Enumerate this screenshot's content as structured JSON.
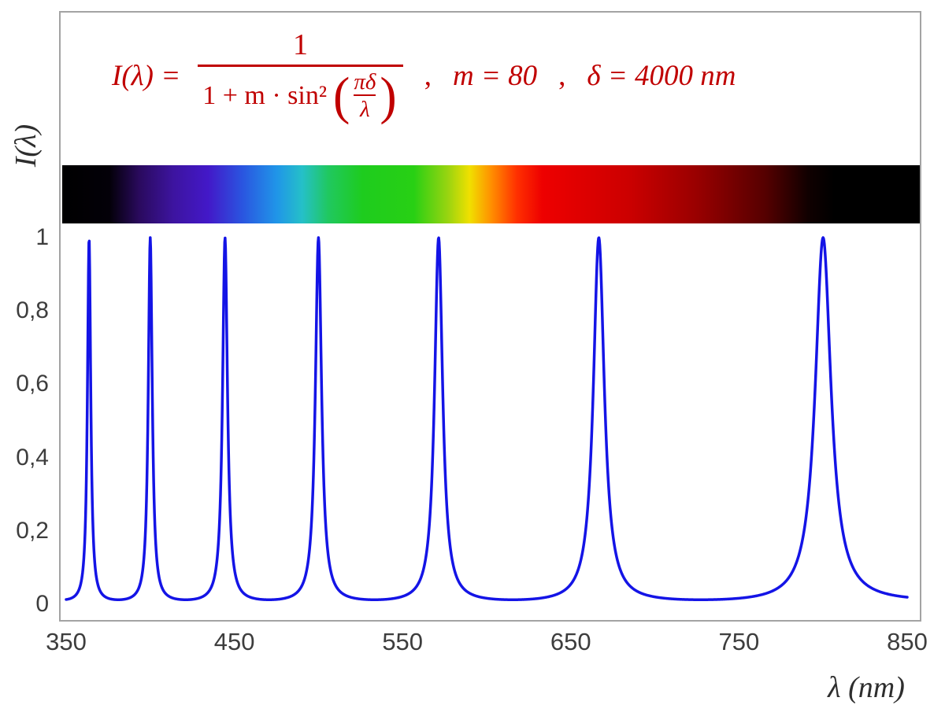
{
  "formula": {
    "lhs": "I(λ) =",
    "numerator": "1",
    "den_prefix": "1 + m · sin²",
    "inner_num": "πδ",
    "inner_den": "λ",
    "separator1": ",",
    "param_m": "m = 80",
    "separator2": ",",
    "param_delta": "δ = 4000 nm"
  },
  "axes": {
    "y_label": "I(λ)",
    "x_label": "λ  (nm)",
    "y_ticks": [
      {
        "label": "1",
        "value": 1.0
      },
      {
        "label": "0,8",
        "value": 0.8
      },
      {
        "label": "0,6",
        "value": 0.6
      },
      {
        "label": "0,4",
        "value": 0.4
      },
      {
        "label": "0,2",
        "value": 0.2
      },
      {
        "label": "0",
        "value": 0.0
      }
    ],
    "x_ticks": [
      {
        "label": "350",
        "value": 350
      },
      {
        "label": "450",
        "value": 450
      },
      {
        "label": "550",
        "value": 550
      },
      {
        "label": "650",
        "value": 650
      },
      {
        "label": "750",
        "value": 750
      },
      {
        "label": "850",
        "value": 850
      }
    ]
  },
  "colors": {
    "formula": "#c00000",
    "curve": "#1414e6",
    "axis_text": "#3d3d3d",
    "frame": "#a3a3a3"
  },
  "chart_data": {
    "type": "line",
    "title": "I(λ) = 1 / (1 + m·sin²(πδ/λ)) ,  m = 80 ,  δ = 4000 nm",
    "xlabel": "λ (nm)",
    "ylabel": "I(λ)",
    "xlim": [
      350,
      850
    ],
    "ylim": [
      0,
      1
    ],
    "grid": false,
    "legend": false,
    "function": "I(lambda) = 1 / (1 + m * sin(pi*delta/lambda)^2)",
    "parameters": {
      "m": 80,
      "delta_nm": 4000
    },
    "series": [
      {
        "name": "I(λ)",
        "color": "#1414e6",
        "peaks_nm": [
          363.6,
          400.0,
          444.4,
          500.0,
          571.4,
          666.7,
          800.0
        ],
        "peak_value": 1.0,
        "min_value": 0.0123
      }
    ],
    "decorations": {
      "visible_spectrum_bar": {
        "wavelength_range_nm": [
          350,
          850
        ],
        "stops": [
          {
            "pos": 0.0,
            "color": "#000000"
          },
          {
            "pos": 0.055,
            "color": "#030008"
          },
          {
            "pos": 0.09,
            "color": "#2a0a5e"
          },
          {
            "pos": 0.13,
            "color": "#3d14a0"
          },
          {
            "pos": 0.17,
            "color": "#4318c8"
          },
          {
            "pos": 0.21,
            "color": "#2a55e0"
          },
          {
            "pos": 0.25,
            "color": "#2095e8"
          },
          {
            "pos": 0.28,
            "color": "#25c0c8"
          },
          {
            "pos": 0.31,
            "color": "#20c860"
          },
          {
            "pos": 0.35,
            "color": "#1ecc1e"
          },
          {
            "pos": 0.41,
            "color": "#28d014"
          },
          {
            "pos": 0.45,
            "color": "#9ad410"
          },
          {
            "pos": 0.475,
            "color": "#f0e000"
          },
          {
            "pos": 0.5,
            "color": "#ff9000"
          },
          {
            "pos": 0.53,
            "color": "#ff3000"
          },
          {
            "pos": 0.56,
            "color": "#ee0000"
          },
          {
            "pos": 0.66,
            "color": "#cc0000"
          },
          {
            "pos": 0.74,
            "color": "#990000"
          },
          {
            "pos": 0.82,
            "color": "#550000"
          },
          {
            "pos": 0.87,
            "color": "#100000"
          },
          {
            "pos": 0.9,
            "color": "#000000"
          },
          {
            "pos": 1.0,
            "color": "#000000"
          }
        ]
      }
    }
  }
}
